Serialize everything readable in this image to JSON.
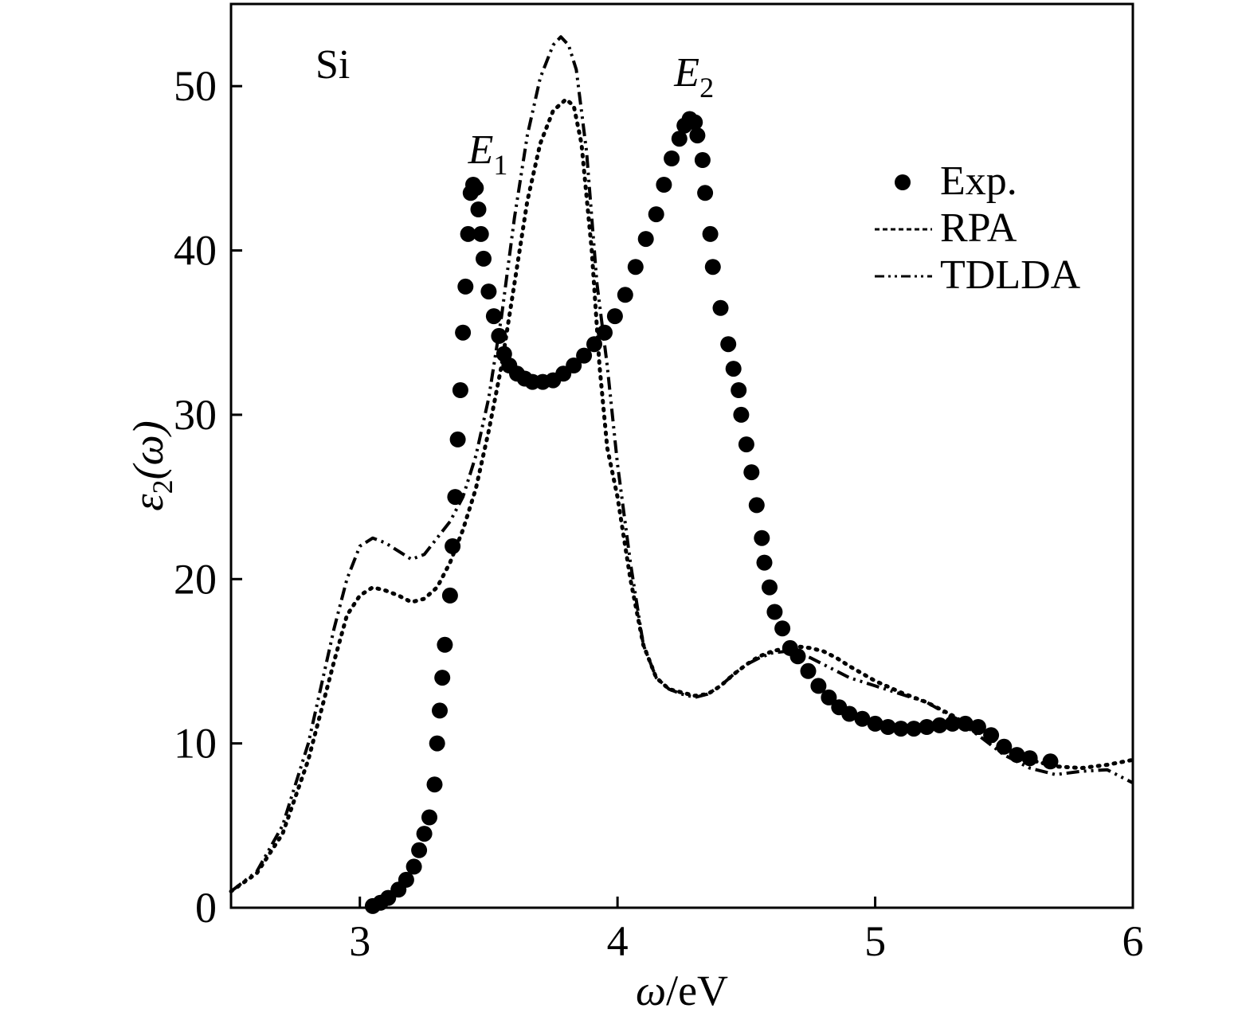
{
  "chart_data": {
    "type": "scatter",
    "panel_label": "Si",
    "xlabel": {
      "main": "ω",
      "unit": "/eV"
    },
    "ylabel": {
      "main": "ε",
      "sub": "2",
      "arg": "(ω)"
    },
    "xlim": [
      2.5,
      6
    ],
    "ylim": [
      0,
      55
    ],
    "x_ticks": [
      3,
      4,
      5,
      6
    ],
    "y_ticks": [
      0,
      10,
      20,
      30,
      40,
      50
    ],
    "grid": false,
    "legend_position": "top-right",
    "annotations": [
      {
        "label": "E",
        "sub": "1",
        "x": 3.42,
        "y": 45.3
      },
      {
        "label": "E",
        "sub": "2",
        "x": 4.22,
        "y": 50.0
      }
    ],
    "series": [
      {
        "name": "Exp.",
        "style": "dots",
        "color": "#000000",
        "points": [
          [
            3.05,
            0.1
          ],
          [
            3.08,
            0.3
          ],
          [
            3.11,
            0.6
          ],
          [
            3.15,
            1.1
          ],
          [
            3.18,
            1.7
          ],
          [
            3.21,
            2.5
          ],
          [
            3.23,
            3.5
          ],
          [
            3.25,
            4.5
          ],
          [
            3.27,
            5.5
          ],
          [
            3.29,
            7.5
          ],
          [
            3.3,
            10
          ],
          [
            3.31,
            12
          ],
          [
            3.32,
            14
          ],
          [
            3.33,
            16
          ],
          [
            3.35,
            19
          ],
          [
            3.36,
            22
          ],
          [
            3.37,
            25
          ],
          [
            3.38,
            28.5
          ],
          [
            3.39,
            31.5
          ],
          [
            3.4,
            35
          ],
          [
            3.41,
            37.8
          ],
          [
            3.42,
            41
          ],
          [
            3.43,
            43.5
          ],
          [
            3.44,
            44
          ],
          [
            3.45,
            43.8
          ],
          [
            3.46,
            42.5
          ],
          [
            3.47,
            41
          ],
          [
            3.48,
            39.5
          ],
          [
            3.5,
            37.5
          ],
          [
            3.52,
            36
          ],
          [
            3.54,
            34.8
          ],
          [
            3.56,
            33.7
          ],
          [
            3.58,
            33
          ],
          [
            3.61,
            32.5
          ],
          [
            3.64,
            32.2
          ],
          [
            3.67,
            32
          ],
          [
            3.71,
            32
          ],
          [
            3.75,
            32.1
          ],
          [
            3.79,
            32.5
          ],
          [
            3.83,
            33
          ],
          [
            3.87,
            33.6
          ],
          [
            3.91,
            34.3
          ],
          [
            3.95,
            35
          ],
          [
            3.99,
            36
          ],
          [
            4.03,
            37.3
          ],
          [
            4.07,
            39
          ],
          [
            4.11,
            40.7
          ],
          [
            4.15,
            42.2
          ],
          [
            4.18,
            44
          ],
          [
            4.21,
            45.6
          ],
          [
            4.24,
            46.8
          ],
          [
            4.26,
            47.6
          ],
          [
            4.28,
            48
          ],
          [
            4.3,
            47.8
          ],
          [
            4.31,
            47
          ],
          [
            4.33,
            45.5
          ],
          [
            4.34,
            43.5
          ],
          [
            4.36,
            41
          ],
          [
            4.37,
            39
          ],
          [
            4.4,
            36.5
          ],
          [
            4.43,
            34.3
          ],
          [
            4.45,
            32.8
          ],
          [
            4.47,
            31.5
          ],
          [
            4.48,
            30
          ],
          [
            4.5,
            28.2
          ],
          [
            4.52,
            26.5
          ],
          [
            4.54,
            24.5
          ],
          [
            4.56,
            22.5
          ],
          [
            4.57,
            21
          ],
          [
            4.59,
            19.5
          ],
          [
            4.61,
            18
          ],
          [
            4.64,
            17
          ],
          [
            4.67,
            15.8
          ],
          [
            4.7,
            15.3
          ],
          [
            4.74,
            14.4
          ],
          [
            4.78,
            13.5
          ],
          [
            4.82,
            12.8
          ],
          [
            4.86,
            12.2
          ],
          [
            4.9,
            11.8
          ],
          [
            4.95,
            11.5
          ],
          [
            5.0,
            11.2
          ],
          [
            5.05,
            11
          ],
          [
            5.1,
            10.9
          ],
          [
            5.15,
            10.9
          ],
          [
            5.2,
            11
          ],
          [
            5.25,
            11.1
          ],
          [
            5.3,
            11.2
          ],
          [
            5.35,
            11.2
          ],
          [
            5.4,
            11
          ],
          [
            5.45,
            10.5
          ],
          [
            5.5,
            9.8
          ],
          [
            5.55,
            9.3
          ],
          [
            5.6,
            9.1
          ],
          [
            5.68,
            8.9
          ]
        ]
      },
      {
        "name": "RPA",
        "style": "dotted",
        "color": "#000000",
        "points": [
          [
            2.5,
            1
          ],
          [
            2.6,
            2.1
          ],
          [
            2.7,
            4.5
          ],
          [
            2.8,
            9
          ],
          [
            2.9,
            15
          ],
          [
            2.95,
            17.8
          ],
          [
            3.0,
            19
          ],
          [
            3.05,
            19.5
          ],
          [
            3.1,
            19.3
          ],
          [
            3.15,
            19
          ],
          [
            3.2,
            18.6
          ],
          [
            3.25,
            18.8
          ],
          [
            3.3,
            19.5
          ],
          [
            3.35,
            21
          ],
          [
            3.4,
            23
          ],
          [
            3.45,
            25.5
          ],
          [
            3.5,
            29
          ],
          [
            3.55,
            33
          ],
          [
            3.6,
            38
          ],
          [
            3.65,
            43
          ],
          [
            3.7,
            46.5
          ],
          [
            3.75,
            48.5
          ],
          [
            3.8,
            49.2
          ],
          [
            3.83,
            48.8
          ],
          [
            3.86,
            46.5
          ],
          [
            3.9,
            40
          ],
          [
            3.93,
            33
          ],
          [
            3.96,
            28
          ],
          [
            4.0,
            25
          ],
          [
            4.05,
            20
          ],
          [
            4.1,
            16
          ],
          [
            4.15,
            14
          ],
          [
            4.2,
            13.3
          ],
          [
            4.25,
            13.1
          ],
          [
            4.3,
            12.9
          ],
          [
            4.35,
            13
          ],
          [
            4.4,
            13.5
          ],
          [
            4.45,
            14.2
          ],
          [
            4.5,
            14.8
          ],
          [
            4.55,
            15.3
          ],
          [
            4.6,
            15.6
          ],
          [
            4.65,
            15.8
          ],
          [
            4.7,
            15.9
          ],
          [
            4.75,
            15.8
          ],
          [
            4.8,
            15.6
          ],
          [
            4.85,
            15.2
          ],
          [
            4.9,
            14.7
          ],
          [
            5.0,
            13.8
          ],
          [
            5.1,
            13.1
          ],
          [
            5.2,
            12.5
          ],
          [
            5.3,
            11.7
          ],
          [
            5.4,
            10.7
          ],
          [
            5.5,
            9.8
          ],
          [
            5.6,
            9
          ],
          [
            5.7,
            8.6
          ],
          [
            5.8,
            8.5
          ],
          [
            5.9,
            8.7
          ],
          [
            6.0,
            9
          ]
        ]
      },
      {
        "name": "TDLDA",
        "style": "dash-dot",
        "color": "#000000",
        "points": [
          [
            2.5,
            1
          ],
          [
            2.6,
            2.2
          ],
          [
            2.7,
            5
          ],
          [
            2.8,
            10
          ],
          [
            2.9,
            17
          ],
          [
            2.95,
            20
          ],
          [
            3.0,
            22
          ],
          [
            3.05,
            22.5
          ],
          [
            3.1,
            22.2
          ],
          [
            3.15,
            21.7
          ],
          [
            3.2,
            21.2
          ],
          [
            3.25,
            21.5
          ],
          [
            3.3,
            22.5
          ],
          [
            3.35,
            23.5
          ],
          [
            3.4,
            25
          ],
          [
            3.45,
            27.5
          ],
          [
            3.5,
            31
          ],
          [
            3.55,
            36
          ],
          [
            3.6,
            42
          ],
          [
            3.65,
            47
          ],
          [
            3.7,
            50.5
          ],
          [
            3.75,
            52.5
          ],
          [
            3.78,
            53
          ],
          [
            3.81,
            52.5
          ],
          [
            3.84,
            51
          ],
          [
            3.88,
            46
          ],
          [
            3.92,
            38
          ],
          [
            3.96,
            33
          ],
          [
            4.0,
            27
          ],
          [
            4.05,
            21
          ],
          [
            4.1,
            16
          ],
          [
            4.15,
            14
          ],
          [
            4.2,
            13.3
          ],
          [
            4.25,
            13
          ],
          [
            4.3,
            12.8
          ],
          [
            4.35,
            13
          ],
          [
            4.4,
            13.5
          ],
          [
            4.45,
            14.2
          ],
          [
            4.5,
            14.8
          ],
          [
            4.55,
            15.2
          ],
          [
            4.6,
            15.5
          ],
          [
            4.65,
            15.6
          ],
          [
            4.7,
            15.5
          ],
          [
            4.75,
            15.2
          ],
          [
            4.8,
            14.8
          ],
          [
            4.85,
            14.4
          ],
          [
            4.9,
            14
          ],
          [
            5.0,
            13.5
          ],
          [
            5.1,
            13
          ],
          [
            5.2,
            12.5
          ],
          [
            5.3,
            11.6
          ],
          [
            5.4,
            10.5
          ],
          [
            5.5,
            9.3
          ],
          [
            5.6,
            8.5
          ],
          [
            5.7,
            8.1
          ],
          [
            5.8,
            8.3
          ],
          [
            5.9,
            8.4
          ],
          [
            6.0,
            7.6
          ]
        ]
      }
    ]
  }
}
